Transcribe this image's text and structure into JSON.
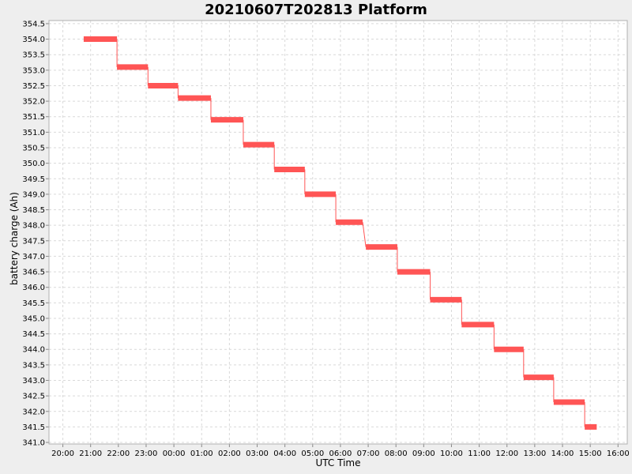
{
  "chart_data": {
    "type": "line",
    "title": "20210607T202813 Platform",
    "xlabel": "UTC Time",
    "ylabel": "battery charge (Ah)",
    "x_tick_labels": [
      "20:00",
      "21:00",
      "22:00",
      "23:00",
      "00:00",
      "01:00",
      "02:00",
      "03:00",
      "04:00",
      "05:00",
      "06:00",
      "07:00",
      "08:00",
      "09:00",
      "10:00",
      "11:00",
      "12:00",
      "13:00",
      "14:00",
      "15:00",
      "16:00"
    ],
    "y_tick_labels": [
      "341.0",
      "341.5",
      "342.0",
      "342.5",
      "343.0",
      "343.5",
      "344.0",
      "344.5",
      "345.0",
      "345.5",
      "346.0",
      "346.5",
      "347.0",
      "347.5",
      "348.0",
      "348.5",
      "349.0",
      "349.5",
      "350.0",
      "350.5",
      "351.0",
      "351.5",
      "352.0",
      "352.5",
      "353.0",
      "353.5",
      "354.0",
      "354.5"
    ],
    "xlim": [
      "2021-06-07 19:30",
      "2021-06-08 16:20"
    ],
    "ylim": [
      340.95,
      354.6
    ],
    "grid": true,
    "color": "#ff5555",
    "series": [
      {
        "segments": [
          {
            "x_start": "2021-06-07 20:45",
            "x_end": "2021-06-07 21:57",
            "y": 354.0
          },
          {
            "x_start": "2021-06-07 21:57",
            "x_end": "2021-06-07 23:04",
            "y": 353.1
          },
          {
            "x_start": "2021-06-07 23:04",
            "x_end": "2021-06-08 00:09",
            "y": 352.5
          },
          {
            "x_start": "2021-06-08 00:09",
            "x_end": "2021-06-08 01:20",
            "y": 352.1
          },
          {
            "x_start": "2021-06-08 01:20",
            "x_end": "2021-06-08 02:30",
            "y": 351.4
          },
          {
            "x_start": "2021-06-08 02:30",
            "x_end": "2021-06-08 03:37",
            "y": 350.6
          },
          {
            "x_start": "2021-06-08 03:37",
            "x_end": "2021-06-08 04:43",
            "y": 349.8
          },
          {
            "x_start": "2021-06-08 04:43",
            "x_end": "2021-06-08 05:50",
            "y": 349.0
          },
          {
            "x_start": "2021-06-08 05:50",
            "x_end": "2021-06-08 06:48",
            "y": 348.1
          },
          {
            "x_start": "2021-06-08 06:55",
            "x_end": "2021-06-08 08:03",
            "y": 347.3
          },
          {
            "x_start": "2021-06-08 08:03",
            "x_end": "2021-06-08 09:14",
            "y": 346.5
          },
          {
            "x_start": "2021-06-08 09:14",
            "x_end": "2021-06-08 10:22",
            "y": 345.6
          },
          {
            "x_start": "2021-06-08 10:22",
            "x_end": "2021-06-08 11:32",
            "y": 344.8
          },
          {
            "x_start": "2021-06-08 11:32",
            "x_end": "2021-06-08 12:36",
            "y": 344.0
          },
          {
            "x_start": "2021-06-08 12:36",
            "x_end": "2021-06-08 13:41",
            "y": 343.1
          },
          {
            "x_start": "2021-06-08 13:41",
            "x_end": "2021-06-08 14:48",
            "y": 342.3
          },
          {
            "x_start": "2021-06-08 14:48",
            "x_end": "2021-06-08 15:14",
            "y": 341.5
          }
        ]
      }
    ]
  }
}
